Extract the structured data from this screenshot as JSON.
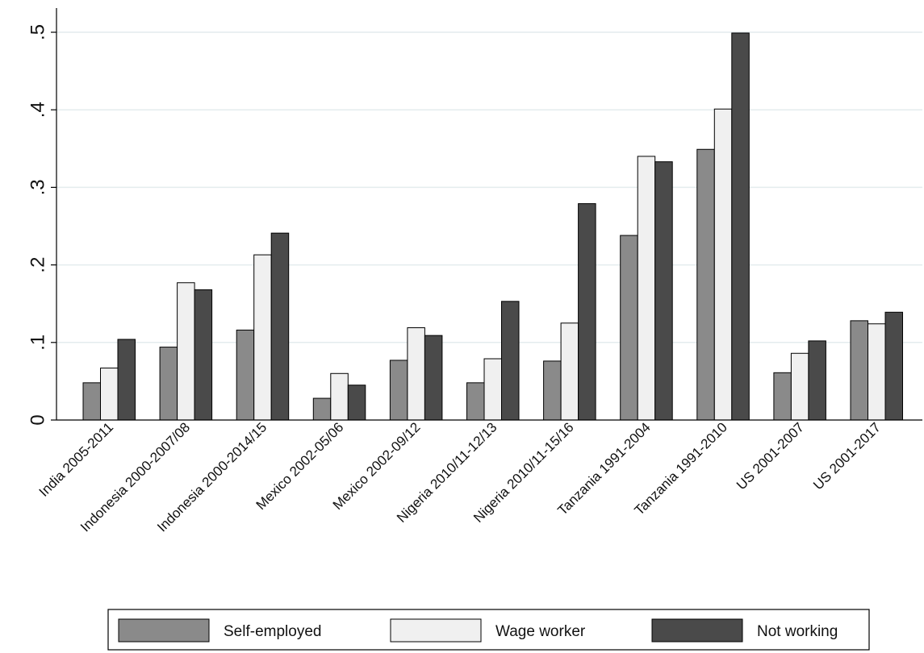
{
  "chart_data": {
    "type": "bar",
    "categories": [
      "India 2005-2011",
      "Indonesia 2000-2007/08",
      "Indonesia 2000-2014/15",
      "Mexico 2002-05/06",
      "Mexico 2002-09/12",
      "Nigeria 2010/11-12/13",
      "Nigeria 2010/11-15/16",
      "Tanzania 1991-2004",
      "Tanzania 1991-2010",
      "US 2001-2007",
      "US 2001-2017"
    ],
    "series": [
      {
        "name": "Self-employed",
        "color": "#8a8a8a",
        "values": [
          0.048,
          0.094,
          0.116,
          0.028,
          0.077,
          0.048,
          0.076,
          0.238,
          0.349,
          0.061,
          0.128
        ]
      },
      {
        "name": "Wage worker",
        "color": "#f0f0f0",
        "values": [
          0.067,
          0.177,
          0.213,
          0.06,
          0.119,
          0.079,
          0.125,
          0.34,
          0.401,
          0.086,
          0.124
        ]
      },
      {
        "name": "Not working",
        "color": "#4a4a4a",
        "values": [
          0.104,
          0.168,
          0.241,
          0.045,
          0.109,
          0.153,
          0.279,
          0.333,
          0.499,
          0.102,
          0.139
        ]
      }
    ],
    "yticks": [
      0,
      0.1,
      0.2,
      0.3,
      0.4,
      0.5
    ],
    "ytick_labels": [
      "0",
      ".1",
      ".2",
      ".3",
      ".4",
      ".5"
    ],
    "ylim": [
      0,
      0.5
    ],
    "grid": true,
    "legend_position": "bottom"
  }
}
